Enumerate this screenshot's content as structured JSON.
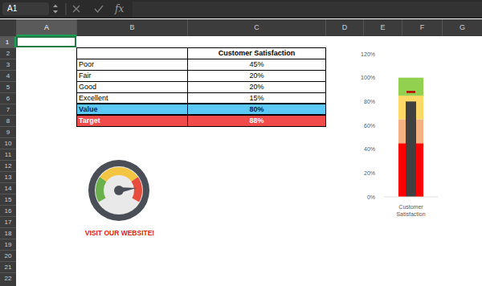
{
  "name_box": "A1",
  "function_label": "fx",
  "columns": [
    "A",
    "B",
    "C",
    "D",
    "E",
    "F",
    "G"
  ],
  "rows": [
    1,
    2,
    3,
    4,
    5,
    6,
    7,
    8,
    9,
    10,
    11,
    12,
    13,
    14,
    15,
    16,
    17,
    18,
    19,
    20,
    21,
    22
  ],
  "table": {
    "header": "Customer Satisfaction",
    "rows": [
      [
        "Poor",
        "45%"
      ],
      [
        "Fair",
        "20%"
      ],
      [
        "Good",
        "20%"
      ],
      [
        "Excellent",
        "15%"
      ]
    ],
    "value_row": [
      "Value",
      "80%"
    ],
    "target_row": [
      "Target",
      "88%"
    ]
  },
  "link": "VISIT OUR WEBSITE!",
  "chart_data": {
    "type": "bar",
    "stacked": true,
    "grid": false,
    "categories": [
      "Customer Satisfaction"
    ],
    "ylim": [
      0,
      120
    ],
    "yticks": [
      {
        "value": 0,
        "label": "0%"
      },
      {
        "value": 20,
        "label": "20%"
      },
      {
        "value": 40,
        "label": "40%"
      },
      {
        "value": 60,
        "label": "60%"
      },
      {
        "value": 80,
        "label": "80%"
      },
      {
        "value": 100,
        "label": "100%"
      },
      {
        "value": 120,
        "label": "120%"
      }
    ],
    "series": [
      {
        "name": "Poor",
        "color": "#ff0000",
        "values": [
          45
        ]
      },
      {
        "name": "Fair",
        "color": "#f4b183",
        "values": [
          20
        ]
      },
      {
        "name": "Good",
        "color": "#ffd966",
        "values": [
          20
        ]
      },
      {
        "name": "Excellent",
        "color": "#92d050",
        "values": [
          15
        ]
      },
      {
        "name": "Value",
        "color": "#404040",
        "type": "overlay",
        "values": [
          80
        ]
      },
      {
        "name": "Target",
        "color": "#c00000",
        "type": "marker",
        "marker": "dash",
        "values": [
          88
        ]
      }
    ]
  }
}
